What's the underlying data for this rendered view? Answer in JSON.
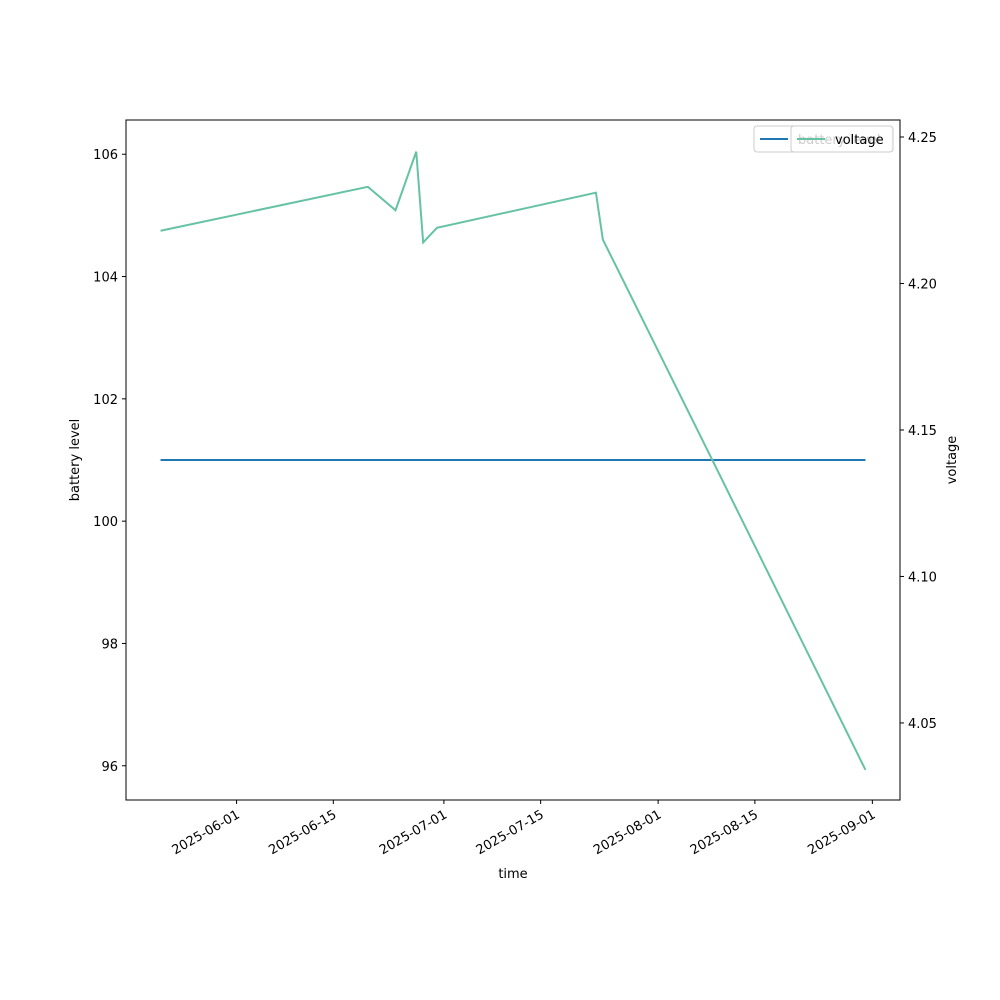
{
  "chart_data": {
    "type": "line",
    "x": [
      "2025-05-21",
      "2025-06-20",
      "2025-06-24",
      "2025-06-27",
      "2025-06-28",
      "2025-06-30",
      "2025-07-23",
      "2025-07-24",
      "2025-08-09",
      "2025-08-31"
    ],
    "series": [
      {
        "name": "battery level",
        "color": "#1f77b4",
        "values": [
          101,
          101,
          101,
          101,
          101,
          101,
          101,
          101,
          101,
          101
        ]
      },
      {
        "name": "voltage",
        "color": "#66c2a5",
        "axis": "y2",
        "values": [
          4.218,
          4.233,
          4.225,
          4.245,
          4.214,
          4.219,
          4.231,
          4.215,
          4.139,
          4.034
        ]
      }
    ],
    "xlabel": "time",
    "ylabel": "battery level",
    "y2label": "voltage",
    "xlim": [
      "2025-05-16",
      "2025-09-05"
    ],
    "xticks": [
      "2025-06-01",
      "2025-06-15",
      "2025-07-01",
      "2025-07-15",
      "2025-08-01",
      "2025-08-15",
      "2025-09-01"
    ],
    "ylim": [
      95.44,
      106.56
    ],
    "yticks": [
      96,
      98,
      100,
      102,
      104,
      106
    ],
    "y2lim": [
      4.0237,
      4.2558
    ],
    "y2ticks": [
      4.05,
      {
        "value": 4.1,
        "label": "4.10"
      },
      4.15,
      {
        "value": 4.2,
        "label": "4.20"
      },
      4.25
    ],
    "legend": "upper right"
  }
}
